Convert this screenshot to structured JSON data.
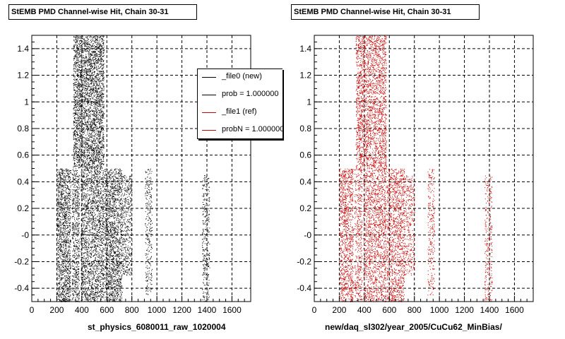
{
  "chart_data": [
    {
      "type": "scatter",
      "title": "StEMB PMD Channel-wise Hit, Chain 30-31",
      "xlabel": "st_physics_6080011_raw_1020004",
      "ylabel": "",
      "xlim": [
        0,
        1750
      ],
      "ylim": [
        -0.5,
        1.5
      ],
      "xticks": [
        "0",
        "200",
        "400",
        "600",
        "800",
        "1000",
        "1200",
        "1400",
        "1600"
      ],
      "yticks": [
        "-0.4",
        "-0.2",
        "-0",
        "0.2",
        "0.4",
        "0.6",
        "0.8",
        "1",
        "1.2",
        "1.4"
      ],
      "grid": true,
      "color": "#000000",
      "clusters": [
        {
          "x": [
            200,
            310
          ],
          "y": [
            -0.5,
            0.5
          ],
          "density": 0.9
        },
        {
          "x": [
            320,
            380
          ],
          "y": [
            -0.5,
            0.5
          ],
          "density": 0.7
        },
        {
          "x": [
            330,
            575
          ],
          "y": [
            0.5,
            1.5
          ],
          "density": 0.95
        },
        {
          "x": [
            390,
            575
          ],
          "y": [
            -0.5,
            0.5
          ],
          "density": 0.75
        },
        {
          "x": [
            580,
            720
          ],
          "y": [
            -0.5,
            0.5
          ],
          "density": 0.85
        },
        {
          "x": [
            720,
            800
          ],
          "y": [
            -0.3,
            0.45
          ],
          "density": 0.5
        },
        {
          "x": [
            905,
            960
          ],
          "y": [
            -0.45,
            0.5
          ],
          "density": 0.4
        },
        {
          "x": [
            1360,
            1420
          ],
          "y": [
            -0.5,
            0.45
          ],
          "density": 0.4
        }
      ],
      "legend": {
        "position": "top-right",
        "entries": [
          {
            "label": "_file0 (new)",
            "color": "#000000"
          },
          {
            "label": "prob = 1.000000",
            "color": "#000000"
          },
          {
            "label": "_file1 (ref)",
            "color": "#cc0000"
          },
          {
            "label": "probN = 1.000000",
            "color": "#cc0000"
          }
        ]
      }
    },
    {
      "type": "scatter",
      "title": "StEMB PMD Channel-wise Hit, Chain 30-31",
      "xlabel": "new/daq_sl302/year_2005/CuCu62_MinBias/",
      "ylabel": "",
      "xlim": [
        0,
        1750
      ],
      "ylim": [
        -0.5,
        1.5
      ],
      "xticks": [
        "0",
        "200",
        "400",
        "600",
        "800",
        "1000",
        "1200",
        "1400",
        "1600"
      ],
      "yticks": [
        "-0.4",
        "-0.2",
        "-0",
        "0.2",
        "0.4",
        "0.6",
        "0.8",
        "1",
        "1.2",
        "1.4"
      ],
      "grid": true,
      "color": "#cc0000",
      "clusters": [
        {
          "x": [
            200,
            310
          ],
          "y": [
            -0.5,
            0.5
          ],
          "density": 0.7
        },
        {
          "x": [
            320,
            380
          ],
          "y": [
            -0.5,
            0.5
          ],
          "density": 0.5
        },
        {
          "x": [
            330,
            575
          ],
          "y": [
            0.5,
            1.5
          ],
          "density": 0.7
        },
        {
          "x": [
            390,
            575
          ],
          "y": [
            -0.5,
            0.5
          ],
          "density": 0.6
        },
        {
          "x": [
            580,
            720
          ],
          "y": [
            -0.5,
            0.5
          ],
          "density": 0.65
        },
        {
          "x": [
            720,
            800
          ],
          "y": [
            -0.3,
            0.45
          ],
          "density": 0.4
        },
        {
          "x": [
            905,
            960
          ],
          "y": [
            -0.45,
            0.5
          ],
          "density": 0.35
        },
        {
          "x": [
            1360,
            1420
          ],
          "y": [
            -0.5,
            0.45
          ],
          "density": 0.35
        }
      ]
    }
  ]
}
